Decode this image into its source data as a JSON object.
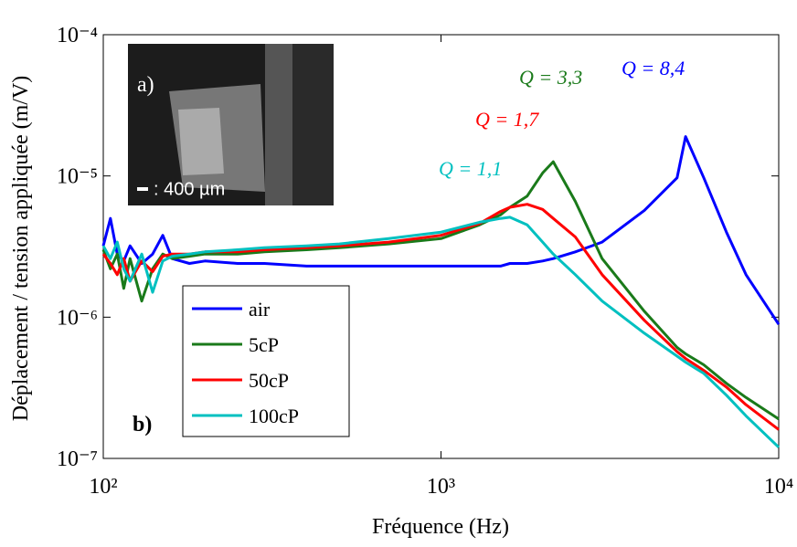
{
  "chart_data": {
    "type": "line",
    "x_label": "Fréquence (Hz)",
    "y_label": "Déplacement / tension appliquée (m/V)",
    "log_x": true,
    "log_y": true,
    "xlim": [
      100,
      10000
    ],
    "ylim": [
      1e-07,
      0.0001
    ],
    "xticks": [
      {
        "value": 100,
        "label": "10²"
      },
      {
        "value": 1000,
        "label": "10³"
      },
      {
        "value": 10000,
        "label": "10⁴"
      }
    ],
    "yticks": [
      {
        "value": 1e-07,
        "label": "10⁻⁷"
      },
      {
        "value": 1e-06,
        "label": "10⁻⁶"
      },
      {
        "value": 1e-05,
        "label": "10⁻⁵"
      },
      {
        "value": 0.0001,
        "label": "10⁻⁴"
      }
    ],
    "x": [
      100,
      105,
      110,
      115,
      120,
      130,
      140,
      150,
      160,
      180,
      200,
      250,
      300,
      400,
      500,
      700,
      1000,
      1300,
      1500,
      1600,
      1800,
      2000,
      2150,
      2500,
      3000,
      4000,
      5000,
      5300,
      6000,
      7000,
      8000,
      10000
    ],
    "series": [
      {
        "name": "air",
        "color": "#0000ff",
        "values": [
          3.2e-06,
          5e-06,
          2.8e-06,
          2.5e-06,
          3.2e-06,
          2.4e-06,
          2.8e-06,
          3.8e-06,
          2.6e-06,
          2.4e-06,
          2.5e-06,
          2.4e-06,
          2.4e-06,
          2.3e-06,
          2.3e-06,
          2.3e-06,
          2.3e-06,
          2.3e-06,
          2.3e-06,
          2.4e-06,
          2.4e-06,
          2.5e-06,
          2.6e-06,
          2.9e-06,
          3.4e-06,
          5.7e-06,
          9.7e-06,
          1.9e-05,
          9.7e-06,
          4e-06,
          2e-06,
          8.9e-07
        ]
      },
      {
        "name": "5cP",
        "color": "#1a7a1a",
        "values": [
          3e-06,
          2.2e-06,
          2.8e-06,
          1.6e-06,
          2.6e-06,
          1.3e-06,
          2.2e-06,
          2.8e-06,
          2.6e-06,
          2.7e-06,
          2.8e-06,
          2.8e-06,
          2.9e-06,
          3e-06,
          3.1e-06,
          3.3e-06,
          3.6e-06,
          4.5e-06,
          5.3e-06,
          6e-06,
          7.2e-06,
          1.05e-05,
          1.26e-05,
          6.6e-06,
          2.6e-06,
          1.1e-06,
          6.1e-07,
          5.5e-07,
          4.6e-07,
          3.4e-07,
          2.7e-07,
          1.9e-07
        ]
      },
      {
        "name": "50cP",
        "color": "#ff0000",
        "values": [
          2.8e-06,
          2.4e-06,
          2e-06,
          2.6e-06,
          1.8e-06,
          2.5e-06,
          2.1e-06,
          2.7e-06,
          2.8e-06,
          2.8e-06,
          2.9e-06,
          2.9e-06,
          3e-06,
          3.1e-06,
          3.2e-06,
          3.4e-06,
          3.8e-06,
          4.6e-06,
          5.6e-06,
          6e-06,
          6.3e-06,
          5.8e-06,
          5e-06,
          3.7e-06,
          2e-06,
          9.5e-07,
          5.7e-07,
          5.1e-07,
          4.2e-07,
          3.2e-07,
          2.4e-07,
          1.6e-07
        ]
      },
      {
        "name": "100cP",
        "color": "#00c0c0",
        "values": [
          3.2e-06,
          2.6e-06,
          3.4e-06,
          2.2e-06,
          1.8e-06,
          2.8e-06,
          1.5e-06,
          2.5e-06,
          2.7e-06,
          2.8e-06,
          2.9e-06,
          3e-06,
          3.1e-06,
          3.2e-06,
          3.3e-06,
          3.6e-06,
          4e-06,
          4.7e-06,
          5e-06,
          5.1e-06,
          4.5e-06,
          3.4e-06,
          2.8e-06,
          2e-06,
          1.3e-06,
          7.7e-07,
          5.3e-07,
          4.8e-07,
          4e-07,
          2.8e-07,
          2e-07,
          1.2e-07
        ]
      }
    ],
    "annotations": [
      {
        "text": "Q = 8,4",
        "color": "#0000ff"
      },
      {
        "text": "Q = 3,3",
        "color": "#1a7a1a"
      },
      {
        "text": "Q = 1,7",
        "color": "#ff0000"
      },
      {
        "text": "Q = 1,1",
        "color": "#00c0c0"
      }
    ],
    "inset_label": "a)",
    "scale_label": ": 400 µm",
    "panel_label": "b)",
    "legend": "lower-left-inner"
  }
}
